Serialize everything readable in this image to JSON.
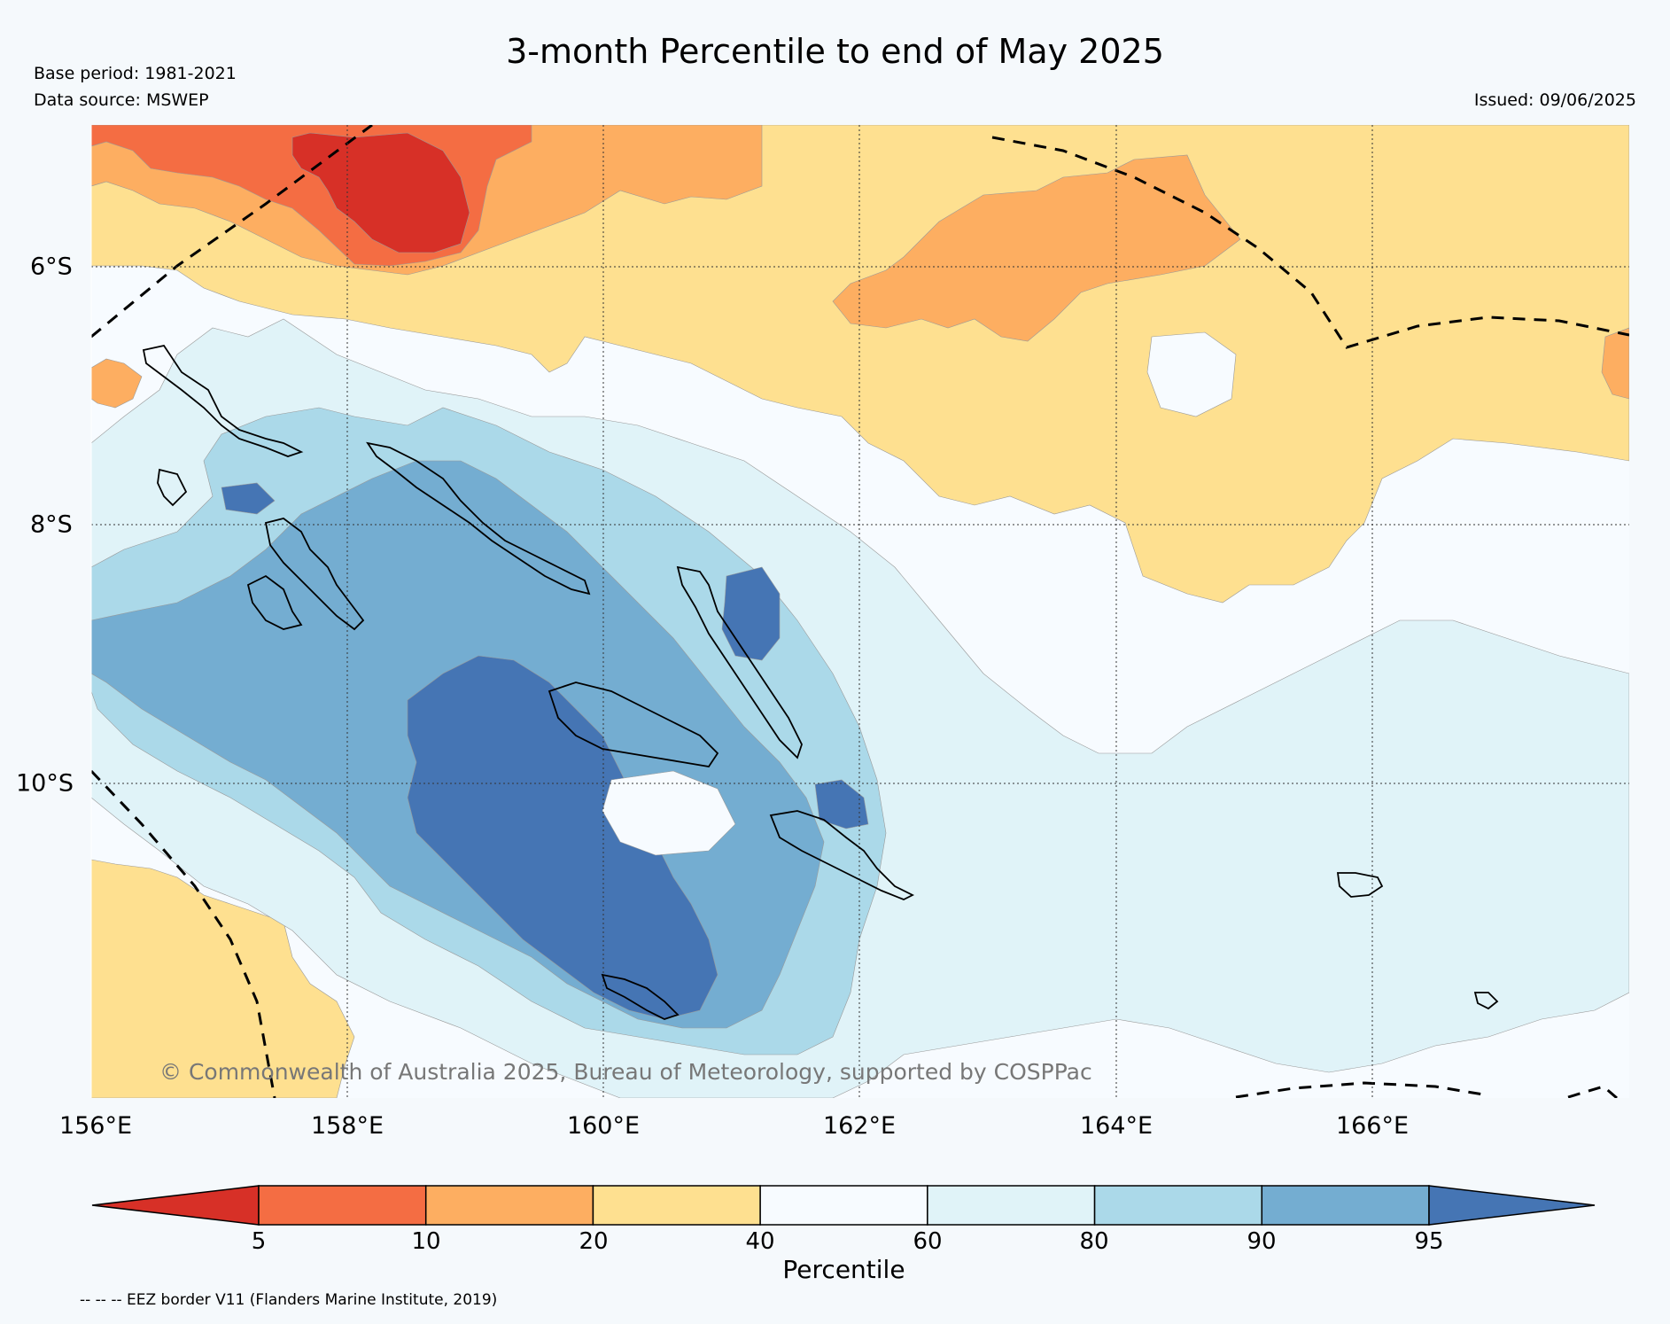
{
  "header": {
    "title": "3-month Percentile to end of May 2025",
    "base_period": "Base period: 1981-2021",
    "data_source": "Data source: MSWEP",
    "issued": "Issued: 09/06/2025"
  },
  "map": {
    "lon_labels": [
      "156°E",
      "158°E",
      "160°E",
      "162°E",
      "164°E",
      "166°E"
    ],
    "lat_labels": [
      "6°S",
      "8°S",
      "10°S"
    ],
    "copyright": "© Commonwealth of Australia 2025, Bureau of Meteorology, supported by COSPPac",
    "colors": {
      "p_lt5": "#d73027",
      "p5_10": "#f46d43",
      "p10_20": "#fdae61",
      "p20_40": "#fee090",
      "p40_60": "#f7fbff",
      "p60_80": "#e0f3f8",
      "p80_90": "#abd9e9",
      "p90_95": "#74add1",
      "p_gt95": "#4575b4"
    }
  },
  "colorbar": {
    "ticks": [
      "5",
      "10",
      "20",
      "40",
      "60",
      "80",
      "90",
      "95"
    ],
    "label": "Percentile",
    "bins": [
      "#d73027",
      "#f46d43",
      "#fdae61",
      "#fee090",
      "#f7fbff",
      "#e0f3f8",
      "#abd9e9",
      "#74add1",
      "#4575b4"
    ]
  },
  "footnote": "-- -- -- EEZ border V11 (Flanders Marine Institute, 2019)"
}
